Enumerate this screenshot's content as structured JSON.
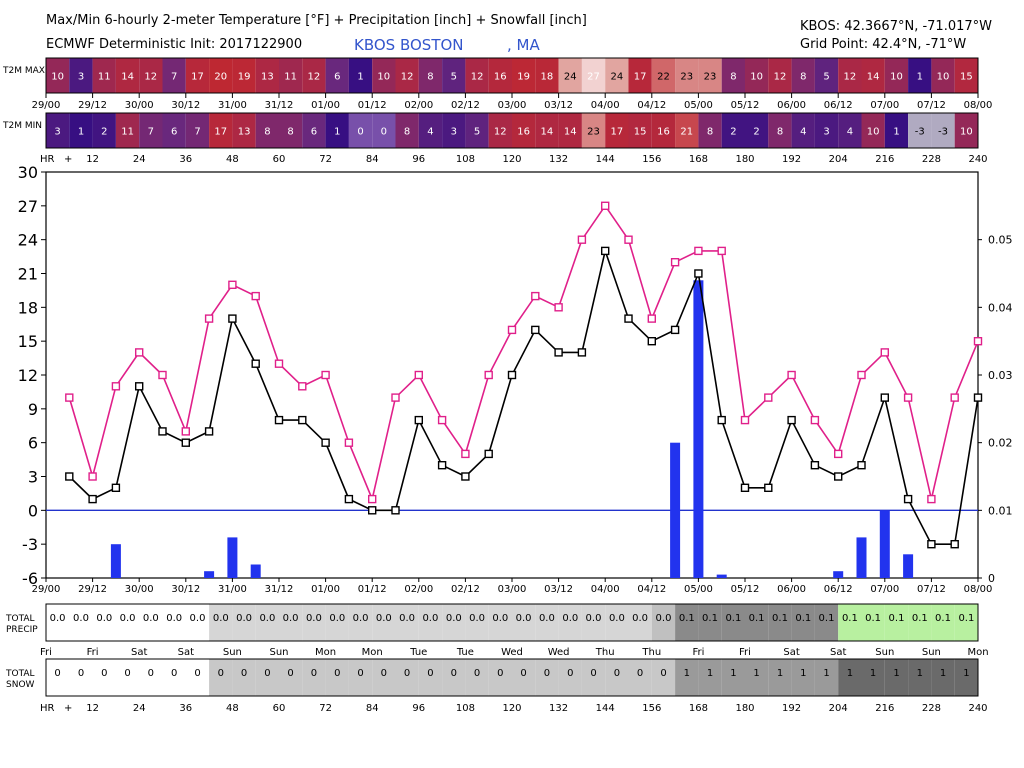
{
  "header": {
    "title": "Max/Min 6-hourly 2-meter Temperature [°F] + Precipitation [inch] + Snowfall [inch]",
    "init": "ECMWF Deterministic Init: 2017122900",
    "station": "KBOS BOSTON",
    "state": ", MA",
    "coords": "KBOS: 42.3667°N, -71.017°W",
    "grid": "Grid Point: 42.4°N, -71°W"
  },
  "rows": {
    "t2m_max_label": "T2M MAX",
    "t2m_min_label": "T2M MIN",
    "precip_label_1": "TOTAL",
    "precip_label_2": "PRECIP",
    "snow_label_1": "TOTAL",
    "snow_label_2": "SNOW",
    "hr_label": "HR",
    "hr_plus": "+"
  },
  "colors": {
    "max_line": "#e0208a",
    "min_line": "#000000",
    "precip_bar": "#2233ee",
    "zero_line": "#2233cc",
    "precip_zero": "#ffffff",
    "precip_low": "#d6d6d6",
    "precip_mid": "#c0c0c0",
    "precip_dark": "#8a8a8a",
    "precip_darker": "#707070",
    "precip_green": "#b8f0a0",
    "snow_zero": "#ffffff",
    "snow_low": "#c8c8c8",
    "snow_mid": "#9a9a9a",
    "snow_dark": "#6a6a6a"
  },
  "chart_data": {
    "type": "line",
    "x": [
      6,
      12,
      18,
      24,
      30,
      36,
      42,
      48,
      54,
      60,
      66,
      72,
      78,
      84,
      90,
      96,
      102,
      108,
      114,
      120,
      126,
      132,
      138,
      144,
      150,
      156,
      162,
      168,
      174,
      180,
      186,
      192,
      198,
      204,
      210,
      216,
      222,
      228,
      234,
      240
    ],
    "series": [
      {
        "values": [
          10,
          3,
          11,
          14,
          12,
          7,
          17,
          20,
          19,
          13,
          11,
          12,
          6,
          1,
          10,
          12,
          8,
          5,
          12,
          16,
          19,
          18,
          24,
          27,
          24,
          17,
          22,
          23,
          23,
          8,
          10,
          12,
          8,
          5,
          12,
          14,
          10,
          1,
          10,
          15
        ]
      },
      {
        "values": [
          3,
          1,
          2,
          11,
          7,
          6,
          7,
          17,
          13,
          8,
          8,
          6,
          1,
          0,
          0,
          8,
          4,
          3,
          5,
          12,
          16,
          14,
          14,
          23,
          17,
          15,
          16,
          21,
          8,
          2,
          2,
          8,
          4,
          3,
          4,
          10,
          1,
          -3,
          -3,
          10
        ]
      },
      {
        "values": [
          0,
          0,
          0.005,
          0,
          0,
          0,
          0.001,
          0.006,
          0.002,
          0,
          0,
          0,
          0,
          0,
          0,
          0,
          0,
          0,
          0,
          0,
          0,
          0,
          0,
          0,
          0,
          0,
          0.02,
          0.044,
          0.0005,
          0,
          0,
          0,
          0,
          0.001,
          0.006,
          0.01,
          0.0035,
          0,
          0,
          0
        ]
      }
    ],
    "ylim": [
      -6,
      30
    ],
    "yticks": [
      "30",
      "27",
      "24",
      "21",
      "18",
      "15",
      "12",
      "9",
      "6",
      "3",
      "0",
      "-3",
      "-6"
    ],
    "y2lim": [
      0,
      0.06
    ],
    "y2ticks": [
      "0.05",
      "0.04",
      "0.03",
      "0.02",
      "0.01",
      "0"
    ],
    "xticks": [
      "29/00",
      "29/12",
      "30/00",
      "30/12",
      "31/00",
      "31/12",
      "01/00",
      "01/12",
      "02/00",
      "02/12",
      "03/00",
      "03/12",
      "04/00",
      "04/12",
      "05/00",
      "05/12",
      "06/00",
      "06/12",
      "07/00",
      "07/12",
      "08/00"
    ],
    "hr_ticks": [
      "12",
      "24",
      "36",
      "48",
      "60",
      "72",
      "84",
      "96",
      "108",
      "120",
      "132",
      "144",
      "156",
      "168",
      "180",
      "192",
      "204",
      "216",
      "228",
      "240"
    ],
    "precip_totals": [
      "0.0",
      "0.0",
      "0.0",
      "0.0",
      "0.0",
      "0.0",
      "0.0",
      "0.0",
      "0.0",
      "0.0",
      "0.0",
      "0.0",
      "0.0",
      "0.0",
      "0.0",
      "0.0",
      "0.0",
      "0.0",
      "0.0",
      "0.0",
      "0.0",
      "0.0",
      "0.0",
      "0.0",
      "0.0",
      "0.0",
      "0.0",
      "0.1",
      "0.1",
      "0.1",
      "0.1",
      "0.1",
      "0.1",
      "0.1",
      "0.1",
      "0.1",
      "0.1",
      "0.1",
      "0.1",
      "0.1"
    ],
    "snow_totals": [
      "0",
      "0",
      "0",
      "0",
      "0",
      "0",
      "0",
      "0",
      "0",
      "0",
      "0",
      "0",
      "0",
      "0",
      "0",
      "0",
      "0",
      "0",
      "0",
      "0",
      "0",
      "0",
      "0",
      "0",
      "0",
      "0",
      "0",
      "1",
      "1",
      "1",
      "1",
      "1",
      "1",
      "1",
      "1",
      "1",
      "1",
      "1",
      "1",
      "1"
    ],
    "days": [
      "Fri",
      "Fri",
      "Sat",
      "Sat",
      "Sun",
      "Sun",
      "Mon",
      "Mon",
      "Tue",
      "Tue",
      "Wed",
      "Wed",
      "Thu",
      "Thu",
      "Fri",
      "Fri",
      "Sat",
      "Sat",
      "Sun",
      "Sun",
      "Mon"
    ],
    "grid": false
  }
}
